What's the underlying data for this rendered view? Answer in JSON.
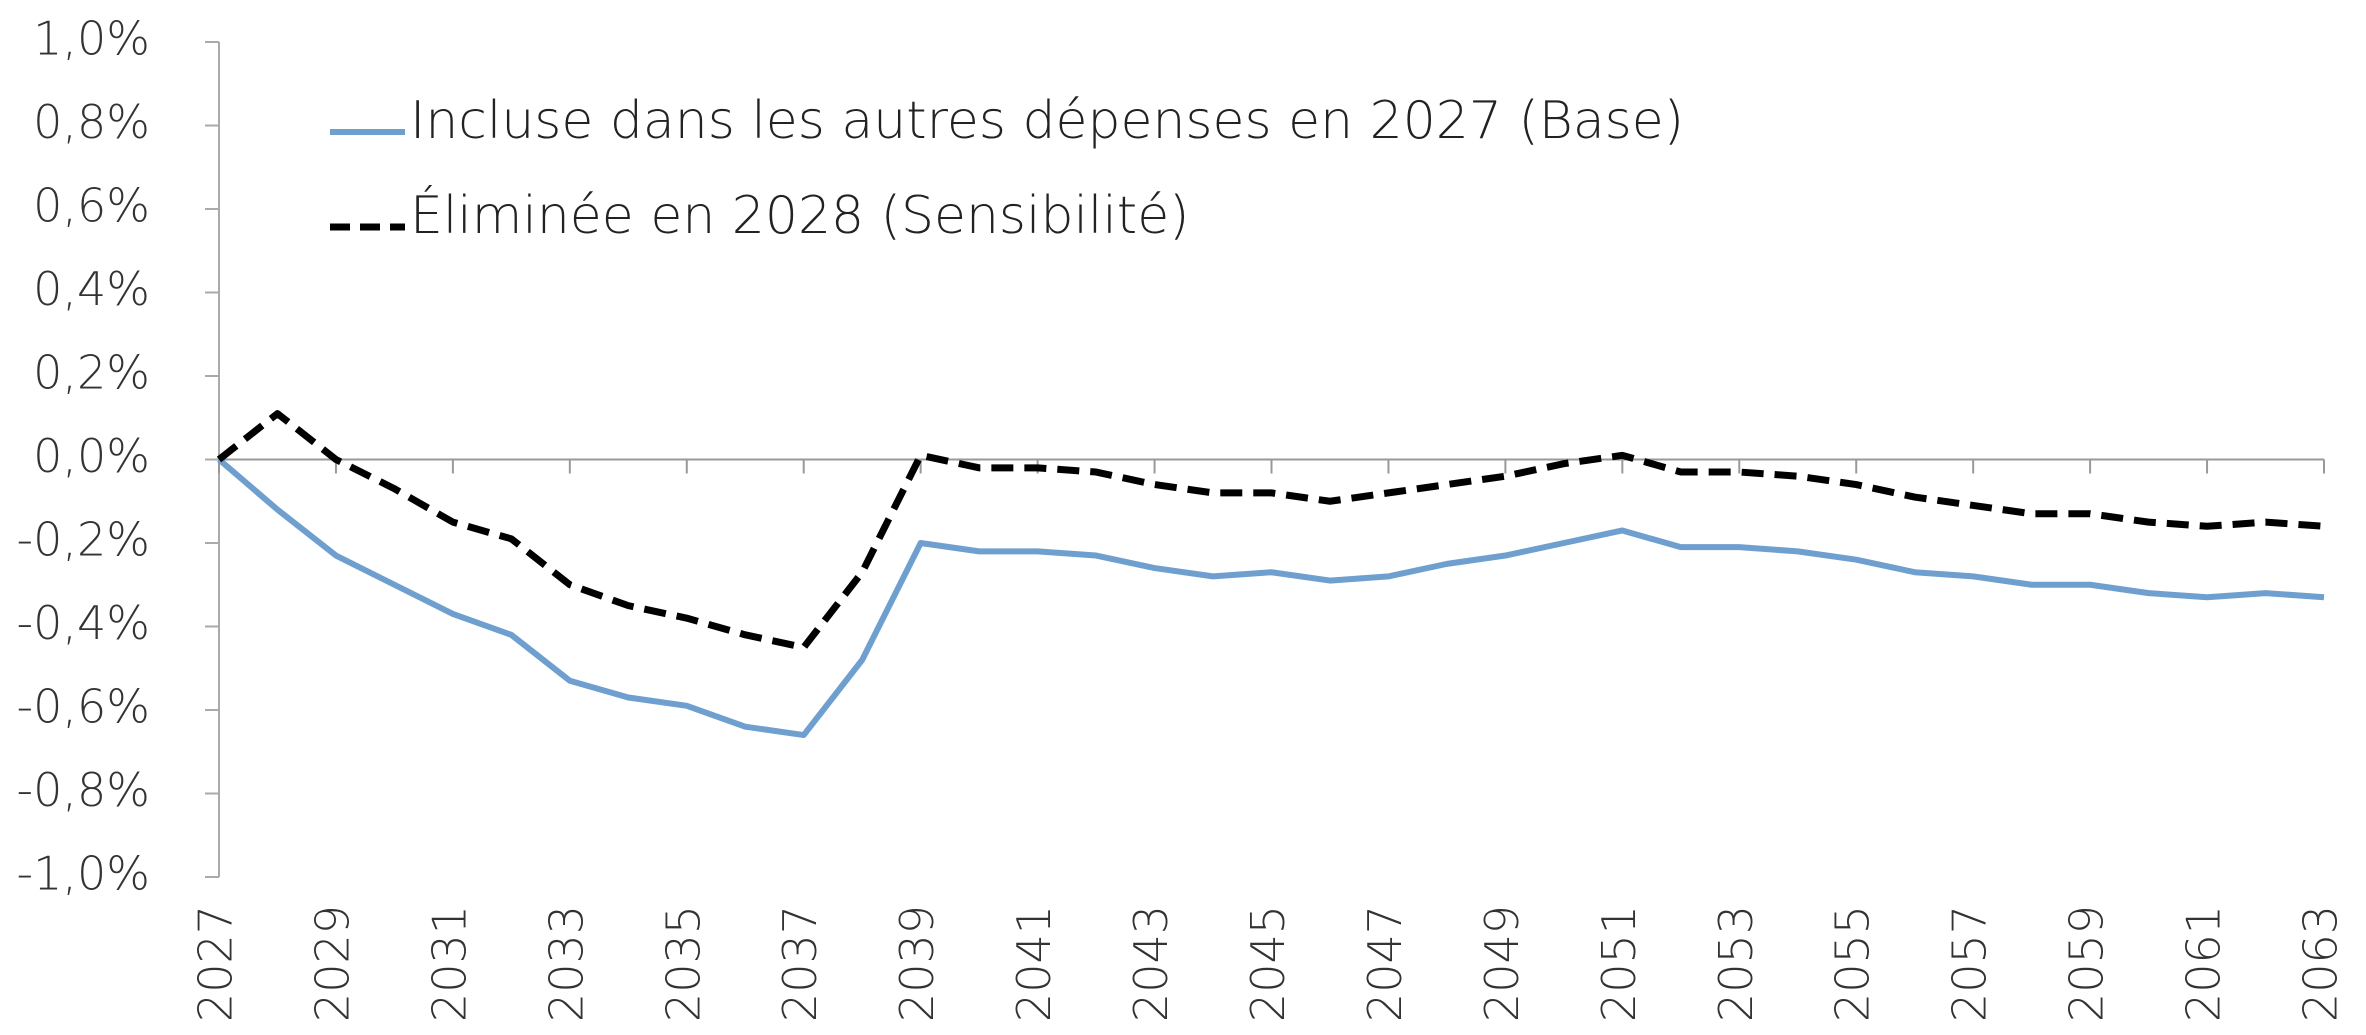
{
  "chart_data": {
    "type": "line",
    "x": [
      2027,
      2028,
      2029,
      2030,
      2031,
      2032,
      2033,
      2034,
      2035,
      2036,
      2037,
      2038,
      2039,
      2040,
      2041,
      2042,
      2043,
      2044,
      2045,
      2046,
      2047,
      2048,
      2049,
      2050,
      2051,
      2052,
      2053,
      2054,
      2055,
      2056,
      2057,
      2058,
      2059,
      2060,
      2061,
      2062,
      2063
    ],
    "series": [
      {
        "name": "Incluse dans les autres dépenses en 2027 (Base)",
        "color": "#6f9fcf",
        "dash": false,
        "values": [
          0,
          -0.12,
          -0.23,
          -0.3,
          -0.37,
          -0.42,
          -0.53,
          -0.57,
          -0.59,
          -0.64,
          -0.66,
          -0.48,
          -0.2,
          -0.22,
          -0.22,
          -0.23,
          -0.26,
          -0.28,
          -0.27,
          -0.29,
          -0.28,
          -0.25,
          -0.23,
          -0.2,
          -0.17,
          -0.21,
          -0.21,
          -0.22,
          -0.24,
          -0.27,
          -0.28,
          -0.3,
          -0.3,
          -0.32,
          -0.33,
          -0.32,
          -0.33
        ]
      },
      {
        "name": "Éliminée en 2028 (Sensibilité)",
        "color": "#000000",
        "dash": true,
        "values": [
          0,
          0.11,
          0.0,
          -0.07,
          -0.15,
          -0.19,
          -0.3,
          -0.35,
          -0.38,
          -0.42,
          -0.45,
          -0.27,
          0.01,
          -0.02,
          -0.02,
          -0.03,
          -0.06,
          -0.08,
          -0.08,
          -0.1,
          -0.08,
          -0.06,
          -0.04,
          -0.01,
          0.01,
          -0.03,
          -0.03,
          -0.04,
          -0.06,
          -0.09,
          -0.11,
          -0.13,
          -0.13,
          -0.15,
          -0.16,
          -0.15,
          -0.16
        ]
      }
    ],
    "xlim": [
      2027,
      2063
    ],
    "xticks": [
      2027,
      2029,
      2031,
      2033,
      2035,
      2037,
      2039,
      2041,
      2043,
      2045,
      2047,
      2049,
      2051,
      2053,
      2055,
      2057,
      2059,
      2061,
      2063
    ],
    "ylim": [
      -1.0,
      1.0
    ],
    "yticks": [
      {
        "value": 1.0,
        "label": "1,0%"
      },
      {
        "value": 0.8,
        "label": "0,8%"
      },
      {
        "value": 0.6,
        "label": "0,6%"
      },
      {
        "value": 0.4,
        "label": "0,4%"
      },
      {
        "value": 0.2,
        "label": "0,2%"
      },
      {
        "value": 0.0,
        "label": "0,0%"
      },
      {
        "value": -0.2,
        "label": "-0,2%"
      },
      {
        "value": -0.4,
        "label": "-0,4%"
      },
      {
        "value": -0.6,
        "label": "-0,6%"
      },
      {
        "value": -0.8,
        "label": "-0,8%"
      },
      {
        "value": -1.0,
        "label": "-1,0%"
      }
    ],
    "grid": false
  }
}
